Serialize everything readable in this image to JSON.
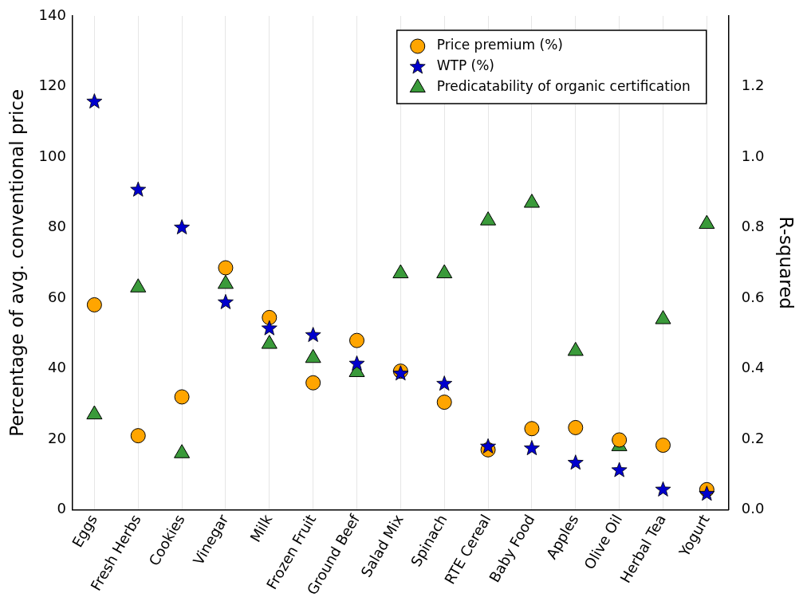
{
  "chart_data": {
    "type": "scatter",
    "categories": [
      "Eggs",
      "Fresh Herbs",
      "Cookies",
      "Vinegar",
      "Milk",
      "Frozen Fruit",
      "Ground Beef",
      "Salad Mix",
      "Spinach",
      "RTE Cereal",
      "Baby Food",
      "Apples",
      "Olive Oil",
      "Herbal Tea",
      "Yogurt"
    ],
    "series": [
      {
        "name": "Price premium (%)",
        "color": "#ffa500",
        "marker": "circle",
        "values": [
          58.1,
          21,
          32,
          68.6,
          54.5,
          36,
          48,
          39.3,
          30.5,
          17,
          23,
          23.3,
          19.8,
          18.3,
          5.7
        ]
      },
      {
        "name": "WTP (%)",
        "color": "#0000cd",
        "marker": "star",
        "values": [
          115.7,
          90.7,
          80,
          58.8,
          51.4,
          49.5,
          41.4,
          38.6,
          35.7,
          17.9,
          17.4,
          13.3,
          11.2,
          5.7,
          4.5
        ]
      },
      {
        "name": "Predicatability of organic certification",
        "color": "#3a9a3a",
        "marker": "triangle",
        "axis": "y2",
        "values": [
          0.27,
          0.63,
          0.16,
          0.64,
          0.47,
          0.43,
          0.39,
          0.67,
          0.67,
          0.82,
          0.87,
          0.45,
          0.18,
          0.54,
          0.81
        ]
      }
    ],
    "ylabel": "Percentage of avg. conventional price",
    "y2label": "R-squared",
    "ylim": [
      0,
      140
    ],
    "yticks": [
      0,
      20,
      40,
      60,
      80,
      100,
      120,
      140
    ],
    "y2lim": [
      0,
      1.4
    ],
    "y2ticks": [
      {
        "value": 0,
        "label": "0.0"
      },
      {
        "value": 0.2,
        "label": "0.2"
      },
      {
        "value": 0.4,
        "label": "0.4"
      },
      {
        "value": 0.6,
        "label": "0.6"
      },
      {
        "value": 0.8,
        "label": "0.8"
      },
      {
        "value": 1,
        "label": "1.0"
      },
      {
        "value": 1.2,
        "label": "1.2"
      }
    ],
    "grid": "x",
    "legend": "top right"
  }
}
